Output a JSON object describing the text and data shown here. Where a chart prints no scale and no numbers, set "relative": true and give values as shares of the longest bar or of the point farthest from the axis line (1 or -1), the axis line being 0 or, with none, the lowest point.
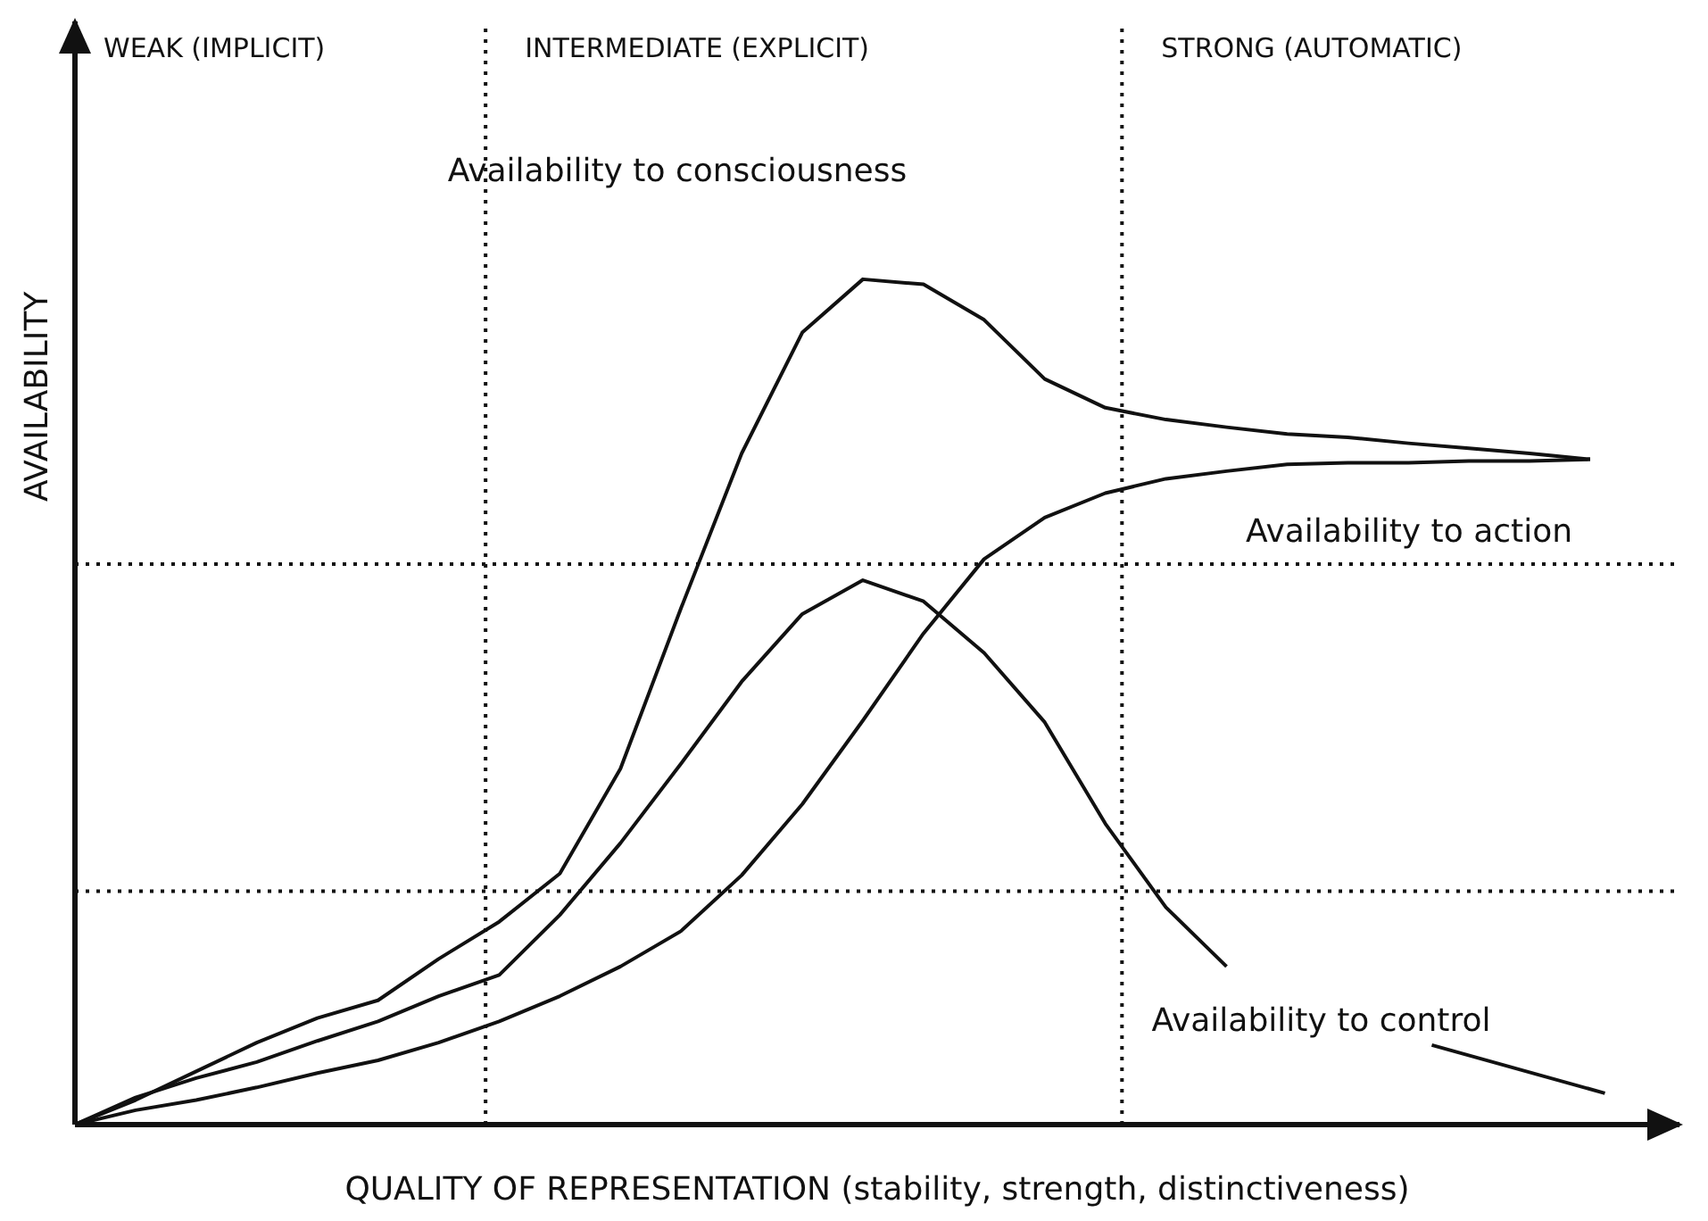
{
  "chart_data": {
    "type": "line",
    "relative": true,
    "xlabel": "QUALITY OF REPRESENTATION (stability, strength,  distinctiveness)",
    "ylabel": "AVAILABILITY",
    "legend": false,
    "grid": false,
    "marker": "none",
    "line_style": "solid",
    "categories": [
      null,
      null,
      null,
      null,
      null,
      null,
      null,
      null,
      null,
      null,
      null,
      null,
      null,
      null,
      null,
      null,
      null,
      null,
      null,
      null,
      null,
      null,
      null,
      null,
      null,
      null
    ],
    "annotations": [
      "WEAK (IMPLICIT)",
      "INTERMEDIATE (EXPLICIT)",
      "STRONG (AUTOMATIC)"
    ],
    "ref_lines": [
      {
        "axis": "y",
        "value": 0.663,
        "line_style": "dotted"
      },
      {
        "axis": "y",
        "value": 0.276,
        "line_style": "dotted"
      }
    ],
    "series": [
      {
        "name": "Availability to consciousness",
        "color": "#111111",
        "values": [
          0,
          0.029,
          0.063,
          0.097,
          0.126,
          0.147,
          0.196,
          0.24,
          0.297,
          0.421,
          0.611,
          0.794,
          0.937,
          1,
          0.994,
          0.952,
          0.882,
          0.848,
          0.834,
          0.825,
          0.817,
          0.813,
          0.806,
          0.8,
          0.794,
          0.787
        ]
      },
      {
        "name": "Availability to action",
        "color": "#111111",
        "values": [
          0,
          0.017,
          0.029,
          0.044,
          0.061,
          0.076,
          0.097,
          0.122,
          0.152,
          0.187,
          0.229,
          0.295,
          0.379,
          0.478,
          0.581,
          0.669,
          0.718,
          0.747,
          0.764,
          0.773,
          0.781,
          0.783,
          0.783,
          0.785,
          0.785,
          0.787
        ]
      },
      {
        "name": "Availability to control",
        "color": "#111111",
        "values": [
          0,
          0.032,
          0.055,
          0.074,
          0.099,
          0.122,
          0.152,
          0.177,
          0.248,
          0.333,
          0.427,
          0.524,
          0.604,
          0.644,
          0.619,
          0.558,
          0.476,
          0.356,
          0.257,
          0.187,
          null,
          null,
          null,
          null,
          null,
          null
        ]
      }
    ]
  }
}
